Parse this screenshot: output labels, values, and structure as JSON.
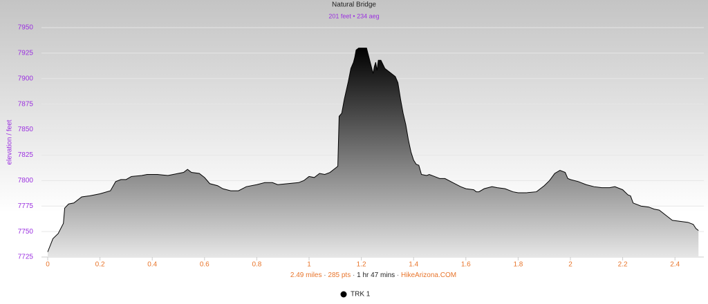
{
  "chart_data": {
    "type": "area",
    "title": "Natural Bridge",
    "subtitle": "201 feet • 234 aeg",
    "y_label": "elevation / feet",
    "caption": [
      "2.49 miles",
      "285 pts",
      "1 hr 47 mins",
      "HikeArizona.COM"
    ],
    "caption_separator": "·",
    "x": [
      0,
      0.02,
      0.04,
      0.06,
      0.065,
      0.08,
      0.1,
      0.13,
      0.16,
      0.2,
      0.24,
      0.26,
      0.28,
      0.3,
      0.32,
      0.36,
      0.38,
      0.42,
      0.46,
      0.48,
      0.52,
      0.535,
      0.55,
      0.58,
      0.6,
      0.62,
      0.65,
      0.67,
      0.7,
      0.73,
      0.76,
      0.8,
      0.83,
      0.86,
      0.88,
      0.92,
      0.96,
      0.98,
      1.0,
      1.02,
      1.04,
      1.06,
      1.08,
      1.1,
      1.11,
      1.115,
      1.125,
      1.135,
      1.15,
      1.16,
      1.17,
      1.175,
      1.18,
      1.19,
      1.2,
      1.22,
      1.23,
      1.24,
      1.245,
      1.25,
      1.255,
      1.26,
      1.265,
      1.275,
      1.29,
      1.31,
      1.33,
      1.34,
      1.35,
      1.36,
      1.37,
      1.38,
      1.39,
      1.4,
      1.41,
      1.42,
      1.43,
      1.45,
      1.46,
      1.48,
      1.5,
      1.52,
      1.55,
      1.58,
      1.6,
      1.63,
      1.64,
      1.65,
      1.67,
      1.7,
      1.72,
      1.75,
      1.78,
      1.8,
      1.83,
      1.87,
      1.9,
      1.92,
      1.94,
      1.96,
      1.98,
      1.99,
      2.0,
      2.03,
      2.06,
      2.09,
      2.12,
      2.15,
      2.17,
      2.2,
      2.22,
      2.23,
      2.24,
      2.27,
      2.3,
      2.32,
      2.34,
      2.37,
      2.39,
      2.42,
      2.45,
      2.47,
      2.48,
      2.49
    ],
    "series": [
      {
        "name": "TRK 1",
        "color": "#000000",
        "values": [
          7730,
          7743,
          7748,
          7758,
          7773,
          7777,
          7778,
          7784,
          7785,
          7787,
          7790,
          7799,
          7801,
          7801,
          7804,
          7805,
          7806,
          7806,
          7805,
          7806,
          7808,
          7811,
          7808,
          7807,
          7803,
          7797,
          7795,
          7792,
          7790,
          7790,
          7794,
          7796,
          7798,
          7798,
          7796,
          7797,
          7798,
          7800,
          7804,
          7803,
          7807,
          7806,
          7808,
          7812,
          7814,
          7863,
          7866,
          7880,
          7897,
          7910,
          7916,
          7921,
          7928,
          7930,
          7930,
          7930,
          7920,
          7910,
          7905,
          7912,
          7916,
          7908,
          7918,
          7918,
          7910,
          7906,
          7902,
          7896,
          7880,
          7866,
          7855,
          7840,
          7828,
          7820,
          7816,
          7815,
          7806,
          7805,
          7806,
          7804,
          7802,
          7802,
          7798,
          7794,
          7792,
          7791,
          7789,
          7789,
          7792,
          7794,
          7793,
          7792,
          7789,
          7788,
          7788,
          7789,
          7795,
          7800,
          7807,
          7810,
          7808,
          7802,
          7801,
          7799,
          7796,
          7794,
          7793,
          7793,
          7794,
          7791,
          7786,
          7785,
          7778,
          7775,
          7774,
          7772,
          7771,
          7765,
          7761,
          7760,
          7759,
          7757,
          7753,
          7751
        ]
      }
    ],
    "xlim": [
      0,
      2.5
    ],
    "ylim": [
      7725,
      7950
    ],
    "xticks": [
      0,
      0.2,
      0.4,
      0.6,
      0.8,
      1,
      1.2,
      1.4,
      1.6,
      1.8,
      2,
      2.2,
      2.4
    ],
    "yticks": [
      7725,
      7750,
      7775,
      7800,
      7825,
      7850,
      7875,
      7900,
      7925,
      7950
    ],
    "grid": true
  }
}
